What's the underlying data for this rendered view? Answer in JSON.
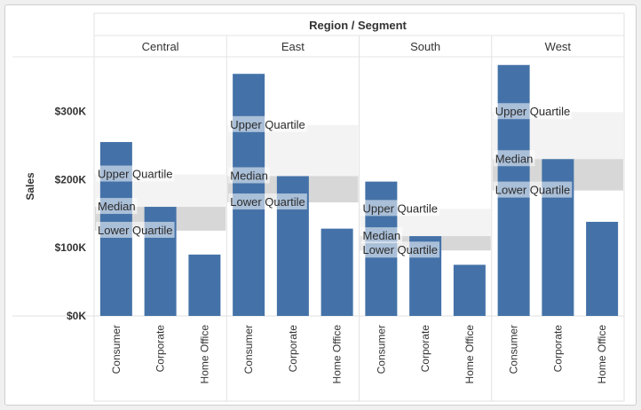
{
  "chart_data": {
    "type": "bar",
    "title": "Region / Segment",
    "ylabel": "Sales",
    "ylim": [
      0,
      380000
    ],
    "yticks": [
      {
        "value": 0,
        "label": "$0K"
      },
      {
        "value": 100000,
        "label": "$100K"
      },
      {
        "value": 200000,
        "label": "$200K"
      },
      {
        "value": 300000,
        "label": "$300K"
      }
    ],
    "categories": [
      "Consumer",
      "Corporate",
      "Home Office"
    ],
    "bar_color": "#4472a8",
    "band_colors": {
      "upper": "#f3f3f3",
      "lower": "#d0d0d0"
    },
    "panels": [
      {
        "region": "Central",
        "values": [
          255000,
          160000,
          90000
        ],
        "quartiles": {
          "upper": 207500,
          "median": 160000,
          "lower": 125000
        },
        "labels": {
          "upper": "Upper Quartile",
          "median": "Median",
          "lower": "Lower Quartile"
        }
      },
      {
        "region": "East",
        "values": [
          355000,
          205000,
          128000
        ],
        "quartiles": {
          "upper": 280000,
          "median": 205000,
          "lower": 166500
        },
        "labels": {
          "upper": "Upper Quartile",
          "median": "Median",
          "lower": "Lower Quartile"
        }
      },
      {
        "region": "South",
        "values": [
          197000,
          117000,
          75000
        ],
        "quartiles": {
          "upper": 157000,
          "median": 117000,
          "lower": 96000
        },
        "labels": {
          "upper": "Upper Quartile",
          "median": "Median",
          "lower": "Lower Quartile"
        }
      },
      {
        "region": "West",
        "values": [
          368000,
          230000,
          138000
        ],
        "quartiles": {
          "upper": 299000,
          "median": 230000,
          "lower": 184000
        },
        "labels": {
          "upper": "Upper Quartile",
          "median": "Median",
          "lower": "Lower Quartile"
        }
      }
    ]
  }
}
